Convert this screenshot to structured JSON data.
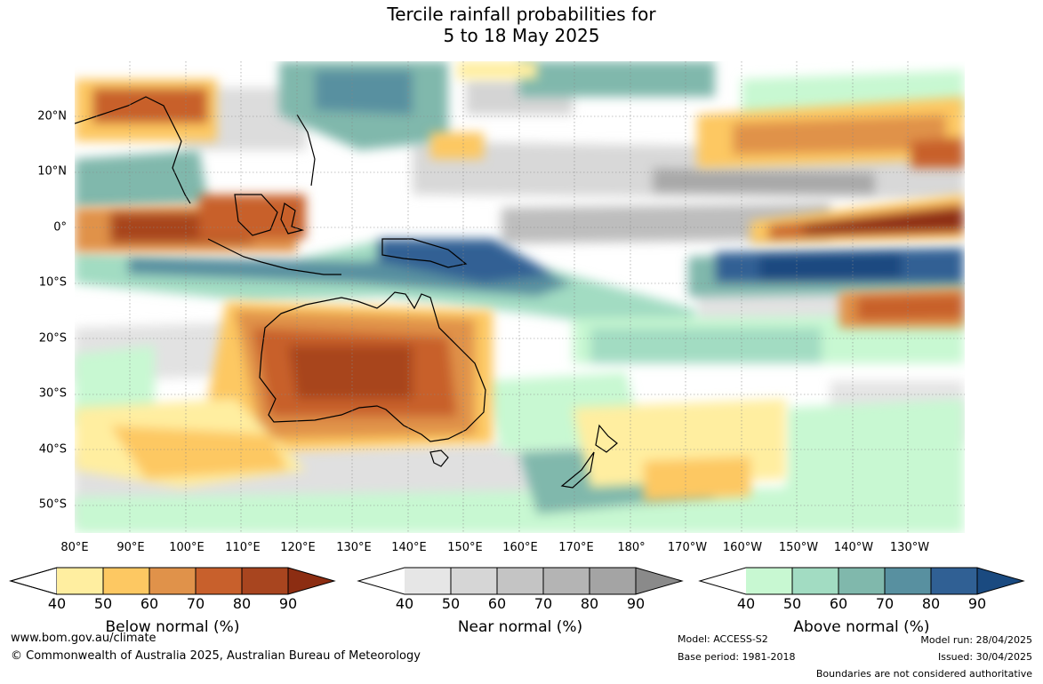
{
  "title_line1": "Tercile rainfall probabilities for",
  "title_line2": "5 to 18 May 2025",
  "lat_labels": [
    "20°N",
    "10°N",
    "0°",
    "10°S",
    "20°S",
    "30°S",
    "40°S",
    "50°S"
  ],
  "lon_labels": [
    "80°E",
    "90°E",
    "100°E",
    "110°E",
    "120°E",
    "130°E",
    "140°E",
    "150°E",
    "160°E",
    "170°E",
    "180°",
    "170°W",
    "160°W",
    "150°W",
    "140°W",
    "130°W"
  ],
  "colorbars": [
    {
      "label": "Below normal (%)",
      "colors": [
        "#ffeea0",
        "#fdc862",
        "#e0924a",
        "#c8602c",
        "#a8451f",
        "#8c2d12"
      ]
    },
    {
      "label": "Near normal (%)",
      "colors": [
        "#e6e6e6",
        "#d6d6d6",
        "#c4c4c4",
        "#b4b4b4",
        "#a4a4a4",
        "#8a8a8a"
      ]
    },
    {
      "label": "Above normal (%)",
      "colors": [
        "#c8f8d2",
        "#a2dcc2",
        "#80b8ac",
        "#5890a0",
        "#306094",
        "#1a4a80"
      ]
    }
  ],
  "tick_values": [
    "40",
    "50",
    "60",
    "70",
    "80",
    "90"
  ],
  "footer": {
    "website": "www.bom.gov.au/climate",
    "copyright": "© Commonwealth of Australia 2025, Australian Bureau of Meteorology",
    "model": "Model: ACCESS-S2",
    "base_period": "Base period: 1981-2018",
    "model_run": "Model run: 28/04/2025",
    "issued": "Issued: 30/04/2025",
    "disclaimer": "Boundaries are not considered authoritative"
  }
}
